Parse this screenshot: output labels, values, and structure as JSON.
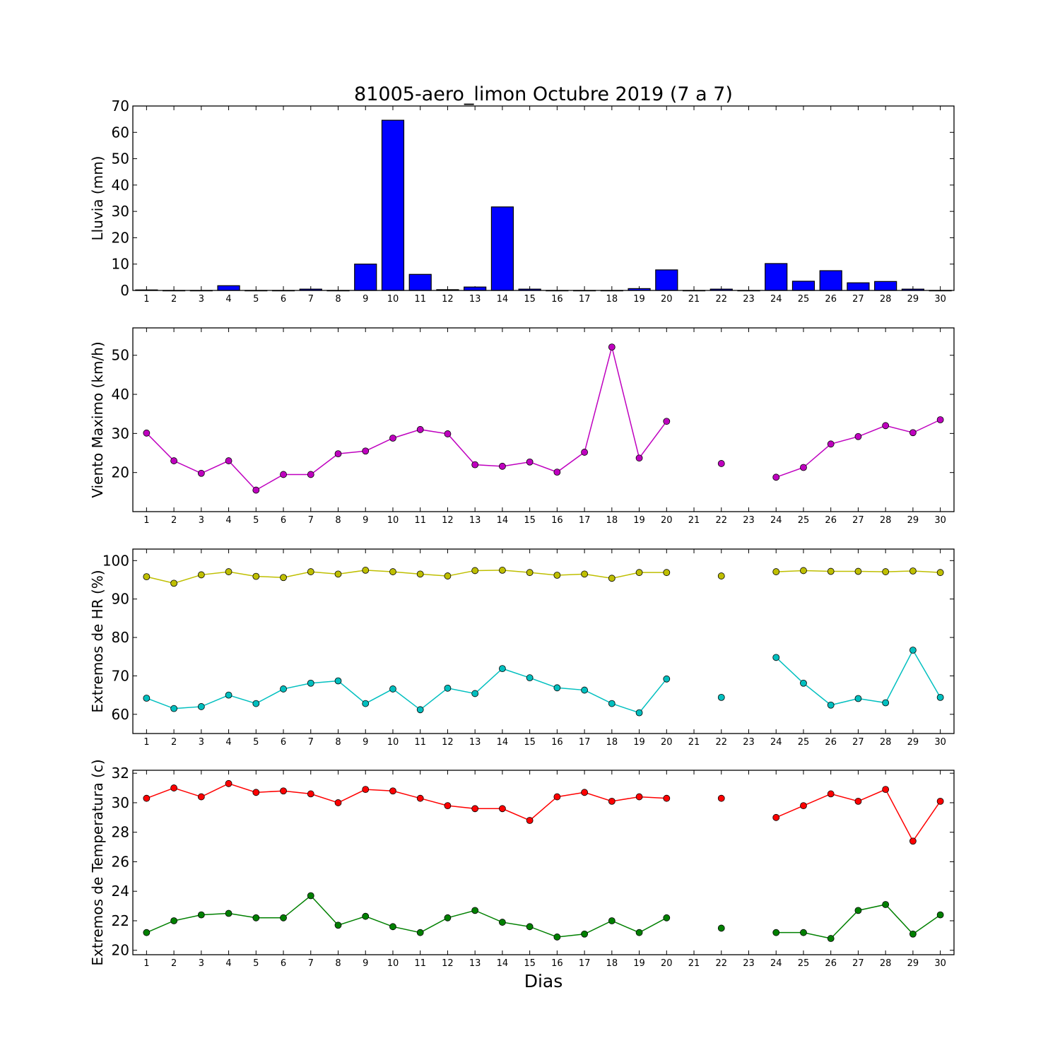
{
  "title": "81005-aero_limon Octubre 2019  (7 a 7)",
  "xlabel": "Dias",
  "chart_data": [
    {
      "type": "bar",
      "ylabel": "Lluvia (mm)",
      "ylim": [
        0,
        70
      ],
      "yticks": [
        0,
        10,
        20,
        30,
        40,
        50,
        60,
        70
      ],
      "categories": [
        1,
        2,
        3,
        4,
        5,
        6,
        7,
        8,
        9,
        10,
        11,
        12,
        13,
        14,
        15,
        16,
        17,
        18,
        19,
        20,
        21,
        22,
        23,
        24,
        25,
        26,
        27,
        28,
        29,
        30
      ],
      "series": [
        {
          "color": "#0000ff",
          "values": [
            0.2,
            0,
            0,
            1.8,
            0,
            0,
            0.5,
            0,
            10,
            64.6,
            6.1,
            0.3,
            1.3,
            31.7,
            0.5,
            0,
            0,
            0,
            0.7,
            7.8,
            0,
            0.5,
            0,
            10.2,
            3.5,
            7.5,
            2.9,
            3.4,
            0.5,
            0
          ]
        }
      ]
    },
    {
      "type": "line",
      "ylabel": "Viento Maximo (km/h)",
      "ylim": [
        10,
        57
      ],
      "yticks": [
        20,
        30,
        40,
        50
      ],
      "x": [
        1,
        2,
        3,
        4,
        5,
        6,
        7,
        8,
        9,
        10,
        11,
        12,
        13,
        14,
        15,
        16,
        17,
        18,
        19,
        20,
        21,
        22,
        23,
        24,
        25,
        26,
        27,
        28,
        29,
        30
      ],
      "series": [
        {
          "color": "#bf00bf",
          "values": [
            30.1,
            23,
            19.8,
            23,
            15.5,
            19.5,
            19.5,
            24.8,
            25.5,
            28.8,
            31,
            29.9,
            22,
            21.6,
            22.7,
            20.1,
            25.2,
            52.1,
            23.7,
            33.1,
            null,
            22.3,
            null,
            18.8,
            21.3,
            27.3,
            29.2,
            32,
            30.2,
            33.5
          ]
        }
      ]
    },
    {
      "type": "line",
      "ylabel": "Extremos de HR (%)",
      "ylim": [
        55,
        103
      ],
      "yticks": [
        60,
        70,
        80,
        90,
        100
      ],
      "x": [
        1,
        2,
        3,
        4,
        5,
        6,
        7,
        8,
        9,
        10,
        11,
        12,
        13,
        14,
        15,
        16,
        17,
        18,
        19,
        20,
        21,
        22,
        23,
        24,
        25,
        26,
        27,
        28,
        29,
        30
      ],
      "series": [
        {
          "color": "#bfbf00",
          "values": [
            95.8,
            94.1,
            96.3,
            97.1,
            95.9,
            95.6,
            97.1,
            96.5,
            97.5,
            97.1,
            96.5,
            96,
            97.4,
            97.5,
            96.9,
            96.2,
            96.5,
            95.4,
            96.9,
            96.9,
            null,
            96,
            null,
            97.1,
            97.4,
            97.2,
            97.2,
            97.1,
            97.3,
            96.9
          ]
        },
        {
          "color": "#00bfbf",
          "values": [
            64.2,
            61.5,
            62,
            65,
            62.8,
            66.6,
            68.1,
            68.7,
            62.8,
            66.6,
            61.2,
            66.8,
            65.4,
            71.9,
            69.5,
            66.9,
            66.3,
            62.8,
            60.4,
            69.2,
            null,
            64.4,
            null,
            74.8,
            68.1,
            62.4,
            64.1,
            63,
            76.7,
            64.4
          ]
        }
      ]
    },
    {
      "type": "line",
      "ylabel": "Extremos de Temperatura (c)",
      "ylim": [
        19.7,
        32.2
      ],
      "yticks": [
        20,
        22,
        24,
        26,
        28,
        30,
        32
      ],
      "x": [
        1,
        2,
        3,
        4,
        5,
        6,
        7,
        8,
        9,
        10,
        11,
        12,
        13,
        14,
        15,
        16,
        17,
        18,
        19,
        20,
        21,
        22,
        23,
        24,
        25,
        26,
        27,
        28,
        29,
        30
      ],
      "series": [
        {
          "color": "#ff0000",
          "values": [
            30.3,
            31,
            30.4,
            31.3,
            30.7,
            30.8,
            30.6,
            30,
            30.9,
            30.8,
            30.3,
            29.8,
            29.6,
            29.6,
            28.8,
            30.4,
            30.7,
            30.1,
            30.4,
            30.3,
            null,
            30.3,
            null,
            29,
            29.8,
            30.6,
            30.1,
            30.9,
            27.4,
            30.1
          ]
        },
        {
          "color": "#008000",
          "values": [
            21.2,
            22,
            22.4,
            22.5,
            22.2,
            22.2,
            23.7,
            21.7,
            22.3,
            21.6,
            21.2,
            22.2,
            22.7,
            21.9,
            21.6,
            20.9,
            21.1,
            22,
            21.2,
            22.2,
            null,
            21.5,
            null,
            21.2,
            21.2,
            20.8,
            22.7,
            23.1,
            21.1,
            22.4
          ]
        }
      ]
    }
  ]
}
